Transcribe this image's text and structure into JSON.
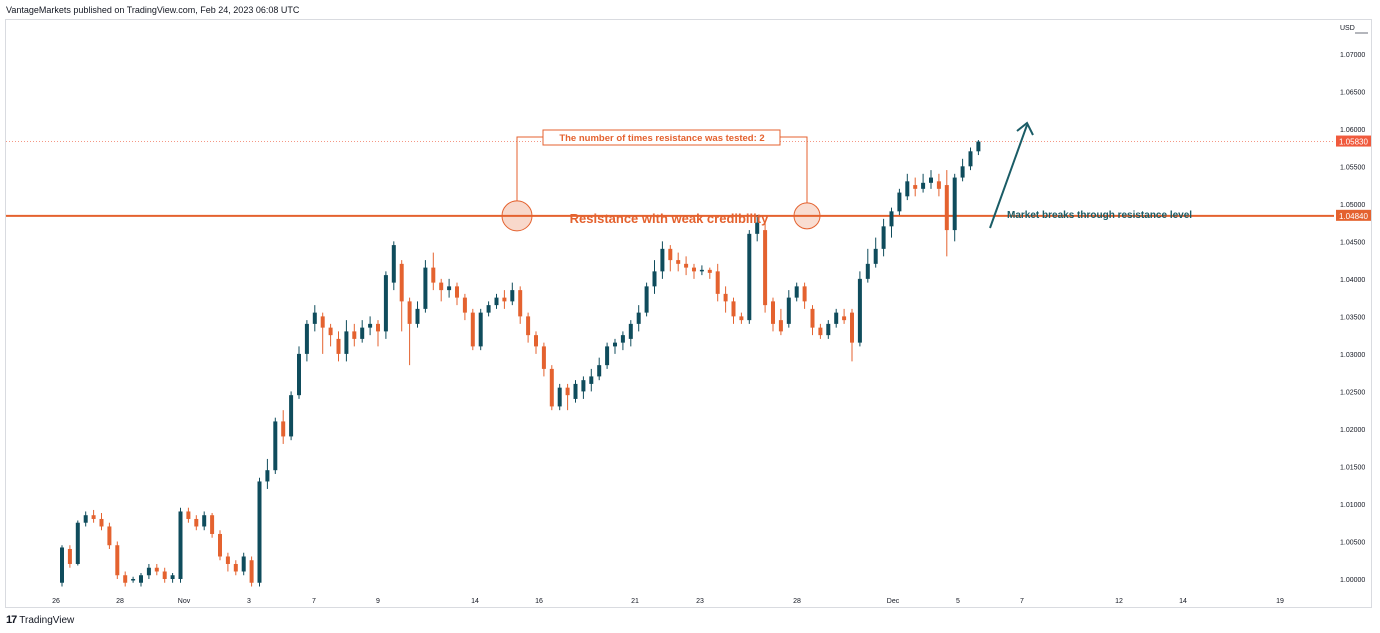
{
  "header": {
    "publisher": "VantageMarkets published on TradingView.com, Feb 24, 2023 06:08 UTC"
  },
  "footer": {
    "brand": "TradingView",
    "logo_glyph": "17"
  },
  "colors": {
    "up": "#0f4c5c",
    "down": "#e4622f",
    "resistance": "#e4622f",
    "annotation": "#1a5c66",
    "price_tag": "#f05a3d"
  },
  "chart_data": {
    "type": "candlestick",
    "title": "",
    "currency": "USD",
    "y_axis": {
      "range": [
        0.998,
        1.0745
      ],
      "ticks": [
        "1.00000",
        "1.00500",
        "1.01000",
        "1.01500",
        "1.02000",
        "1.02500",
        "1.03000",
        "1.03500",
        "1.04000",
        "1.04500",
        "1.05000",
        "1.05500",
        "1.06000",
        "1.06500",
        "1.07000"
      ],
      "position": "right"
    },
    "x_axis": {
      "labels": [
        "26",
        "28",
        "Nov",
        "3",
        "7",
        "9",
        "14",
        "16",
        "21",
        "23",
        "28",
        "Dec",
        "5",
        "7",
        "12",
        "14",
        "19"
      ]
    },
    "current_price": {
      "value": 1.0583,
      "label": "1.05830"
    },
    "resistance": {
      "value": 1.0484,
      "label": "1.04840",
      "caption": "Resistance with weak credibility"
    },
    "test_annotation": {
      "label": "The number of times resistance was tested: 2"
    },
    "breakout_annotation": {
      "label": "Market breaks through resistance level"
    },
    "candles": [
      [
        0.9995,
        1.0042,
        0.999,
        1.0045
      ],
      [
        1.004,
        1.002,
        1.0015,
        1.0045
      ],
      [
        1.002,
        1.0075,
        1.0018,
        1.0078
      ],
      [
        1.0075,
        1.0085,
        1.007,
        1.009
      ],
      [
        1.0085,
        1.008,
        1.0075,
        1.0092
      ],
      [
        1.008,
        1.007,
        1.0065,
        1.0088
      ],
      [
        1.007,
        1.0045,
        1.004,
        1.0075
      ],
      [
        1.0045,
        1.0005,
        1.0,
        1.005
      ],
      [
        1.0005,
        0.9995,
        0.999,
        1.001
      ],
      [
        0.9998,
        1.0,
        0.9995,
        1.0003
      ],
      [
        0.9995,
        1.0005,
        0.999,
        1.0008
      ],
      [
        1.0005,
        1.0015,
        1.0,
        1.002
      ],
      [
        1.0015,
        1.001,
        1.0005,
        1.002
      ],
      [
        1.001,
        1.0,
        0.9995,
        1.0015
      ],
      [
        1.0,
        1.0005,
        0.9995,
        1.0008
      ],
      [
        1.0,
        1.009,
        0.9995,
        1.0095
      ],
      [
        1.009,
        1.008,
        1.0075,
        1.0095
      ],
      [
        1.008,
        1.007,
        1.0065,
        1.0085
      ],
      [
        1.007,
        1.0085,
        1.0065,
        1.009
      ],
      [
        1.0085,
        1.006,
        1.0055,
        1.0088
      ],
      [
        1.006,
        1.003,
        1.0025,
        1.0065
      ],
      [
        1.003,
        1.002,
        1.001,
        1.0035
      ],
      [
        1.002,
        1.001,
        1.0005,
        1.0025
      ],
      [
        1.001,
        1.003,
        1.0005,
        1.0035
      ],
      [
        1.0025,
        0.9995,
        0.999,
        1.003
      ],
      [
        0.9995,
        1.013,
        0.999,
        1.0135
      ],
      [
        1.013,
        1.0145,
        1.012,
        1.016
      ],
      [
        1.0145,
        1.021,
        1.014,
        1.0215
      ],
      [
        1.021,
        1.019,
        1.018,
        1.0225
      ],
      [
        1.019,
        1.0245,
        1.0185,
        1.025
      ],
      [
        1.0245,
        1.03,
        1.024,
        1.031
      ],
      [
        1.03,
        1.034,
        1.029,
        1.0345
      ],
      [
        1.034,
        1.0355,
        1.033,
        1.0365
      ],
      [
        1.035,
        1.0335,
        1.03,
        1.0355
      ],
      [
        1.0335,
        1.0325,
        1.031,
        1.034
      ],
      [
        1.032,
        1.03,
        1.029,
        1.033
      ],
      [
        1.03,
        1.033,
        1.029,
        1.0345
      ],
      [
        1.033,
        1.032,
        1.031,
        1.034
      ],
      [
        1.032,
        1.0335,
        1.0315,
        1.0345
      ],
      [
        1.0335,
        1.034,
        1.0325,
        1.035
      ],
      [
        1.034,
        1.033,
        1.031,
        1.0345
      ],
      [
        1.033,
        1.0405,
        1.032,
        1.041
      ],
      [
        1.0395,
        1.0445,
        1.0385,
        1.045
      ],
      [
        1.042,
        1.037,
        1.033,
        1.0425
      ],
      [
        1.037,
        1.034,
        1.0285,
        1.0375
      ],
      [
        1.034,
        1.036,
        1.0335,
        1.037
      ],
      [
        1.036,
        1.0415,
        1.0355,
        1.0425
      ],
      [
        1.0415,
        1.0395,
        1.0385,
        1.0435
      ],
      [
        1.0395,
        1.0385,
        1.037,
        1.04
      ],
      [
        1.0385,
        1.039,
        1.0375,
        1.04
      ],
      [
        1.039,
        1.0375,
        1.0365,
        1.0395
      ],
      [
        1.0375,
        1.0355,
        1.0345,
        1.038
      ],
      [
        1.0355,
        1.031,
        1.0305,
        1.036
      ],
      [
        1.031,
        1.0355,
        1.0305,
        1.036
      ],
      [
        1.0355,
        1.0365,
        1.035,
        1.037
      ],
      [
        1.0365,
        1.0375,
        1.036,
        1.038
      ],
      [
        1.0375,
        1.037,
        1.036,
        1.0385
      ],
      [
        1.037,
        1.0385,
        1.0365,
        1.0395
      ],
      [
        1.0385,
        1.035,
        1.034,
        1.039
      ],
      [
        1.035,
        1.0325,
        1.0315,
        1.0355
      ],
      [
        1.0325,
        1.031,
        1.03,
        1.033
      ],
      [
        1.031,
        1.028,
        1.027,
        1.0315
      ],
      [
        1.028,
        1.023,
        1.0225,
        1.0285
      ],
      [
        1.023,
        1.0255,
        1.0225,
        1.026
      ],
      [
        1.0255,
        1.0245,
        1.0225,
        1.026
      ],
      [
        1.024,
        1.026,
        1.0235,
        1.0265
      ],
      [
        1.025,
        1.0265,
        1.024,
        1.027
      ],
      [
        1.026,
        1.027,
        1.025,
        1.028
      ],
      [
        1.027,
        1.0285,
        1.0265,
        1.0295
      ],
      [
        1.0285,
        1.031,
        1.028,
        1.0315
      ],
      [
        1.031,
        1.0315,
        1.03,
        1.032
      ],
      [
        1.0315,
        1.0325,
        1.0305,
        1.033
      ],
      [
        1.032,
        1.034,
        1.031,
        1.0345
      ],
      [
        1.034,
        1.0355,
        1.033,
        1.0365
      ],
      [
        1.0355,
        1.039,
        1.035,
        1.0395
      ],
      [
        1.039,
        1.041,
        1.038,
        1.0425
      ],
      [
        1.041,
        1.044,
        1.04,
        1.045
      ],
      [
        1.044,
        1.0425,
        1.041,
        1.0445
      ],
      [
        1.0425,
        1.042,
        1.041,
        1.0435
      ],
      [
        1.042,
        1.0415,
        1.0405,
        1.043
      ],
      [
        1.0415,
        1.041,
        1.04,
        1.042
      ],
      [
        1.041,
        1.0412,
        1.0405,
        1.0418
      ],
      [
        1.0412,
        1.0408,
        1.04,
        1.0415
      ],
      [
        1.041,
        1.038,
        1.037,
        1.042
      ],
      [
        1.038,
        1.037,
        1.0355,
        1.039
      ],
      [
        1.037,
        1.035,
        1.034,
        1.0375
      ],
      [
        1.035,
        1.0345,
        1.034,
        1.0355
      ],
      [
        1.0345,
        1.046,
        1.034,
        1.0465
      ],
      [
        1.046,
        1.0475,
        1.045,
        1.0485
      ],
      [
        1.0465,
        1.0365,
        1.0355,
        1.0475
      ],
      [
        1.037,
        1.034,
        1.033,
        1.0375
      ],
      [
        1.0345,
        1.033,
        1.0325,
        1.036
      ],
      [
        1.034,
        1.0375,
        1.0335,
        1.0385
      ],
      [
        1.0375,
        1.039,
        1.037,
        1.0395
      ],
      [
        1.039,
        1.037,
        1.036,
        1.0395
      ],
      [
        1.036,
        1.0335,
        1.0325,
        1.0365
      ],
      [
        1.0335,
        1.0325,
        1.032,
        1.034
      ],
      [
        1.0325,
        1.034,
        1.032,
        1.0345
      ],
      [
        1.034,
        1.0355,
        1.0335,
        1.036
      ],
      [
        1.035,
        1.0345,
        1.034,
        1.036
      ],
      [
        1.0355,
        1.0315,
        1.029,
        1.036
      ],
      [
        1.0315,
        1.04,
        1.031,
        1.041
      ],
      [
        1.04,
        1.042,
        1.0395,
        1.044
      ],
      [
        1.042,
        1.044,
        1.0415,
        1.0455
      ],
      [
        1.044,
        1.047,
        1.043,
        1.048
      ],
      [
        1.047,
        1.049,
        1.0455,
        1.0495
      ],
      [
        1.049,
        1.0515,
        1.0485,
        1.052
      ],
      [
        1.051,
        1.053,
        1.0505,
        1.054
      ],
      [
        1.0525,
        1.052,
        1.051,
        1.0535
      ],
      [
        1.052,
        1.0528,
        1.0515,
        1.054
      ],
      [
        1.0528,
        1.0535,
        1.052,
        1.0545
      ],
      [
        1.053,
        1.052,
        1.051,
        1.054
      ],
      [
        1.0525,
        1.0465,
        1.043,
        1.0545
      ],
      [
        1.0465,
        1.0535,
        1.045,
        1.054
      ],
      [
        1.0535,
        1.055,
        1.053,
        1.056
      ],
      [
        1.055,
        1.057,
        1.0545,
        1.0575
      ],
      [
        1.057,
        1.0583,
        1.0565,
        1.0585
      ]
    ]
  }
}
